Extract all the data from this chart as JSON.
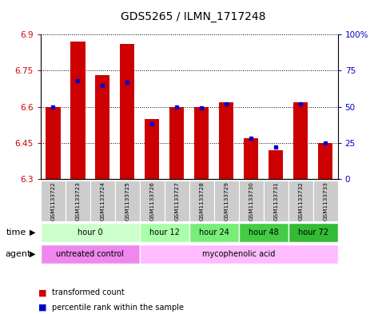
{
  "title": "GDS5265 / ILMN_1717248",
  "samples": [
    "GSM1133722",
    "GSM1133723",
    "GSM1133724",
    "GSM1133725",
    "GSM1133726",
    "GSM1133727",
    "GSM1133728",
    "GSM1133729",
    "GSM1133730",
    "GSM1133731",
    "GSM1133732",
    "GSM1133733"
  ],
  "transformed_counts": [
    6.6,
    6.87,
    6.73,
    6.86,
    6.55,
    6.6,
    6.6,
    6.62,
    6.47,
    6.42,
    6.62,
    6.45
  ],
  "percentile_ranks": [
    50,
    68,
    65,
    67,
    38,
    50,
    49,
    52,
    28,
    22,
    52,
    25
  ],
  "ylim_left": [
    6.3,
    6.9
  ],
  "yticks_left": [
    6.3,
    6.45,
    6.6,
    6.75,
    6.9
  ],
  "ytick_labels_left": [
    "6.3",
    "6.45",
    "6.6",
    "6.75",
    "6.9"
  ],
  "ylim_right": [
    0,
    100
  ],
  "yticks_right": [
    0,
    25,
    50,
    75,
    100
  ],
  "ytick_labels_right": [
    "0",
    "25",
    "50",
    "75",
    "100%"
  ],
  "bar_bottom": 6.3,
  "bar_color": "#cc0000",
  "dot_color": "#0000cc",
  "grid_color": "#000000",
  "time_groups": [
    {
      "label": "hour 0",
      "start": 0,
      "end": 4,
      "color": "#ccffcc"
    },
    {
      "label": "hour 12",
      "start": 4,
      "end": 6,
      "color": "#aaffaa"
    },
    {
      "label": "hour 24",
      "start": 6,
      "end": 8,
      "color": "#77ee77"
    },
    {
      "label": "hour 48",
      "start": 8,
      "end": 10,
      "color": "#44cc44"
    },
    {
      "label": "hour 72",
      "start": 10,
      "end": 12,
      "color": "#33bb33"
    }
  ],
  "agent_groups": [
    {
      "label": "untreated control",
      "start": 0,
      "end": 4,
      "color": "#ee88ee"
    },
    {
      "label": "mycophenolic acid",
      "start": 4,
      "end": 12,
      "color": "#ffbbff"
    }
  ],
  "legend_entries": [
    {
      "color": "#cc0000",
      "label": "transformed count"
    },
    {
      "color": "#0000cc",
      "label": "percentile rank within the sample"
    }
  ],
  "bg_color": "#ffffff",
  "plot_bg_color": "#ffffff",
  "tick_color_left": "#cc0000",
  "tick_color_right": "#0000cc",
  "sample_bg_color": "#cccccc",
  "border_color": "#888888"
}
